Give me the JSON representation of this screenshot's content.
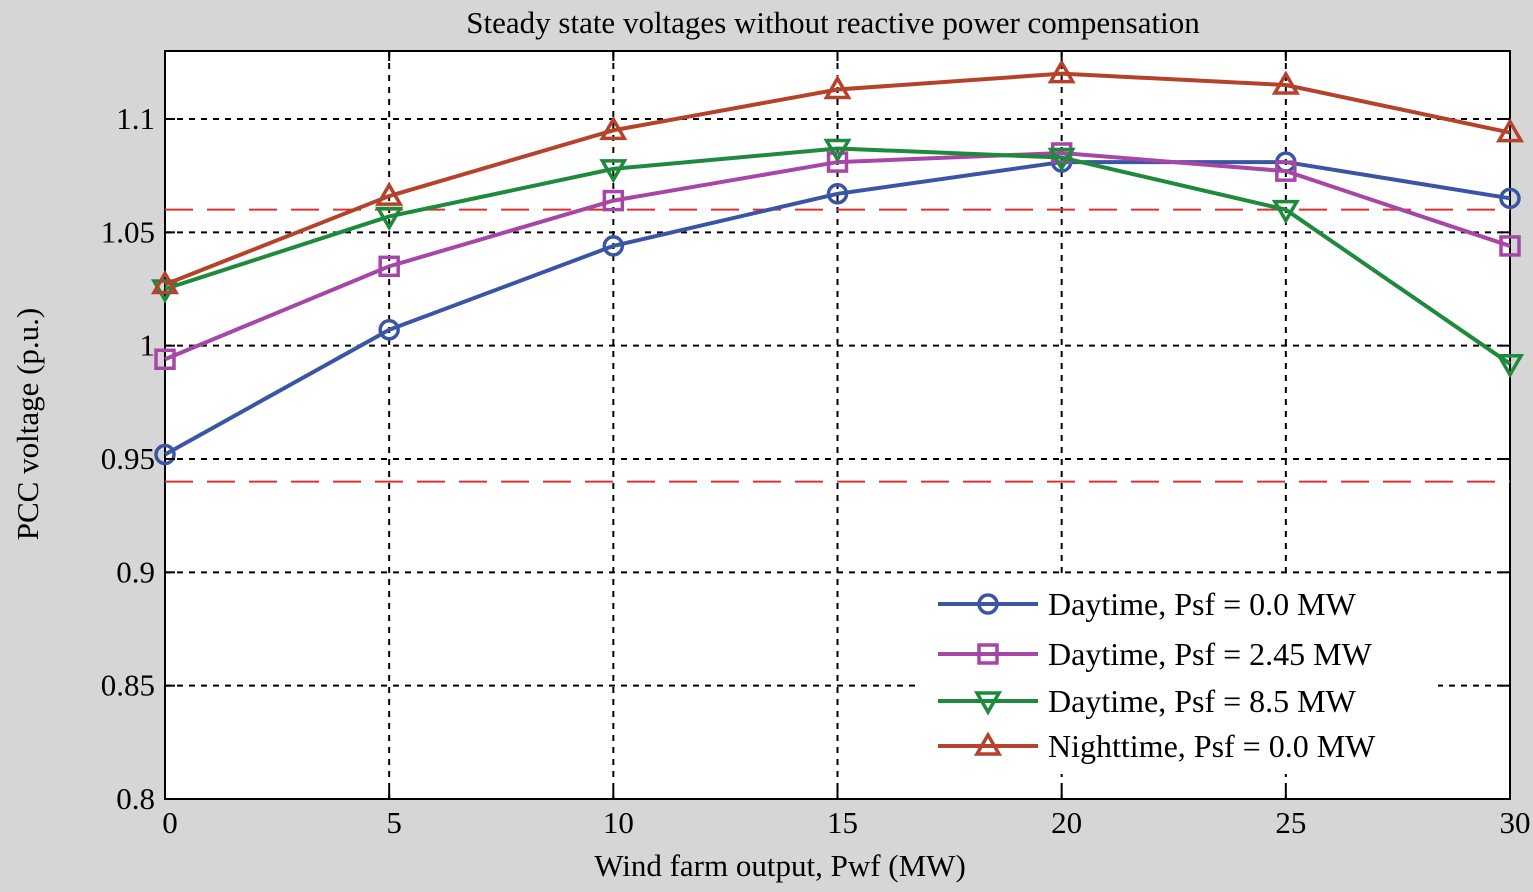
{
  "chart_data": {
    "type": "line",
    "title": "Steady state voltages without reactive power compensation",
    "xlabel": "Wind farm output, Pwf (MW)",
    "ylabel": "PCC voltage (p.u.)",
    "x": [
      0,
      5,
      10,
      15,
      20,
      25,
      30
    ],
    "xlim": [
      0,
      30
    ],
    "ylim": [
      0.8,
      1.13
    ],
    "x_ticks": [
      0,
      5,
      10,
      15,
      20,
      25,
      30
    ],
    "x_tick_labels": [
      "0",
      "5",
      "10",
      "15",
      "20",
      "25",
      "30"
    ],
    "y_ticks": [
      0.8,
      0.85,
      0.9,
      0.95,
      1.0,
      1.05,
      1.1
    ],
    "y_tick_labels": [
      "0.8",
      "0.85",
      "0.9",
      "0.95",
      "1",
      "1.05",
      "1.1"
    ],
    "grid": true,
    "legend_position": "bottom-right",
    "limit_lines": [
      {
        "value": 1.06,
        "color": "#e03030",
        "style": "dashed"
      },
      {
        "value": 0.94,
        "color": "#e03030",
        "style": "dashed"
      }
    ],
    "series": [
      {
        "name": "Daytime, Psf = 0.0 MW",
        "color": "#3a55a4",
        "marker": "circle",
        "values": [
          0.952,
          1.007,
          1.044,
          1.067,
          1.081,
          1.081,
          1.065
        ]
      },
      {
        "name": "Daytime, Psf = 2.45 MW",
        "color": "#a646a6",
        "marker": "square",
        "values": [
          0.994,
          1.035,
          1.064,
          1.081,
          1.085,
          1.077,
          1.044
        ]
      },
      {
        "name": "Daytime, Psf = 8.5 MW",
        "color": "#1e8a3c",
        "marker": "triangle-down",
        "values": [
          1.025,
          1.057,
          1.078,
          1.087,
          1.083,
          1.06,
          0.992
        ]
      },
      {
        "name": "Nighttime, Psf = 0.0 MW",
        "color": "#b5422a",
        "marker": "triangle-up",
        "values": [
          1.027,
          1.066,
          1.095,
          1.113,
          1.12,
          1.115,
          1.094
        ]
      }
    ]
  }
}
